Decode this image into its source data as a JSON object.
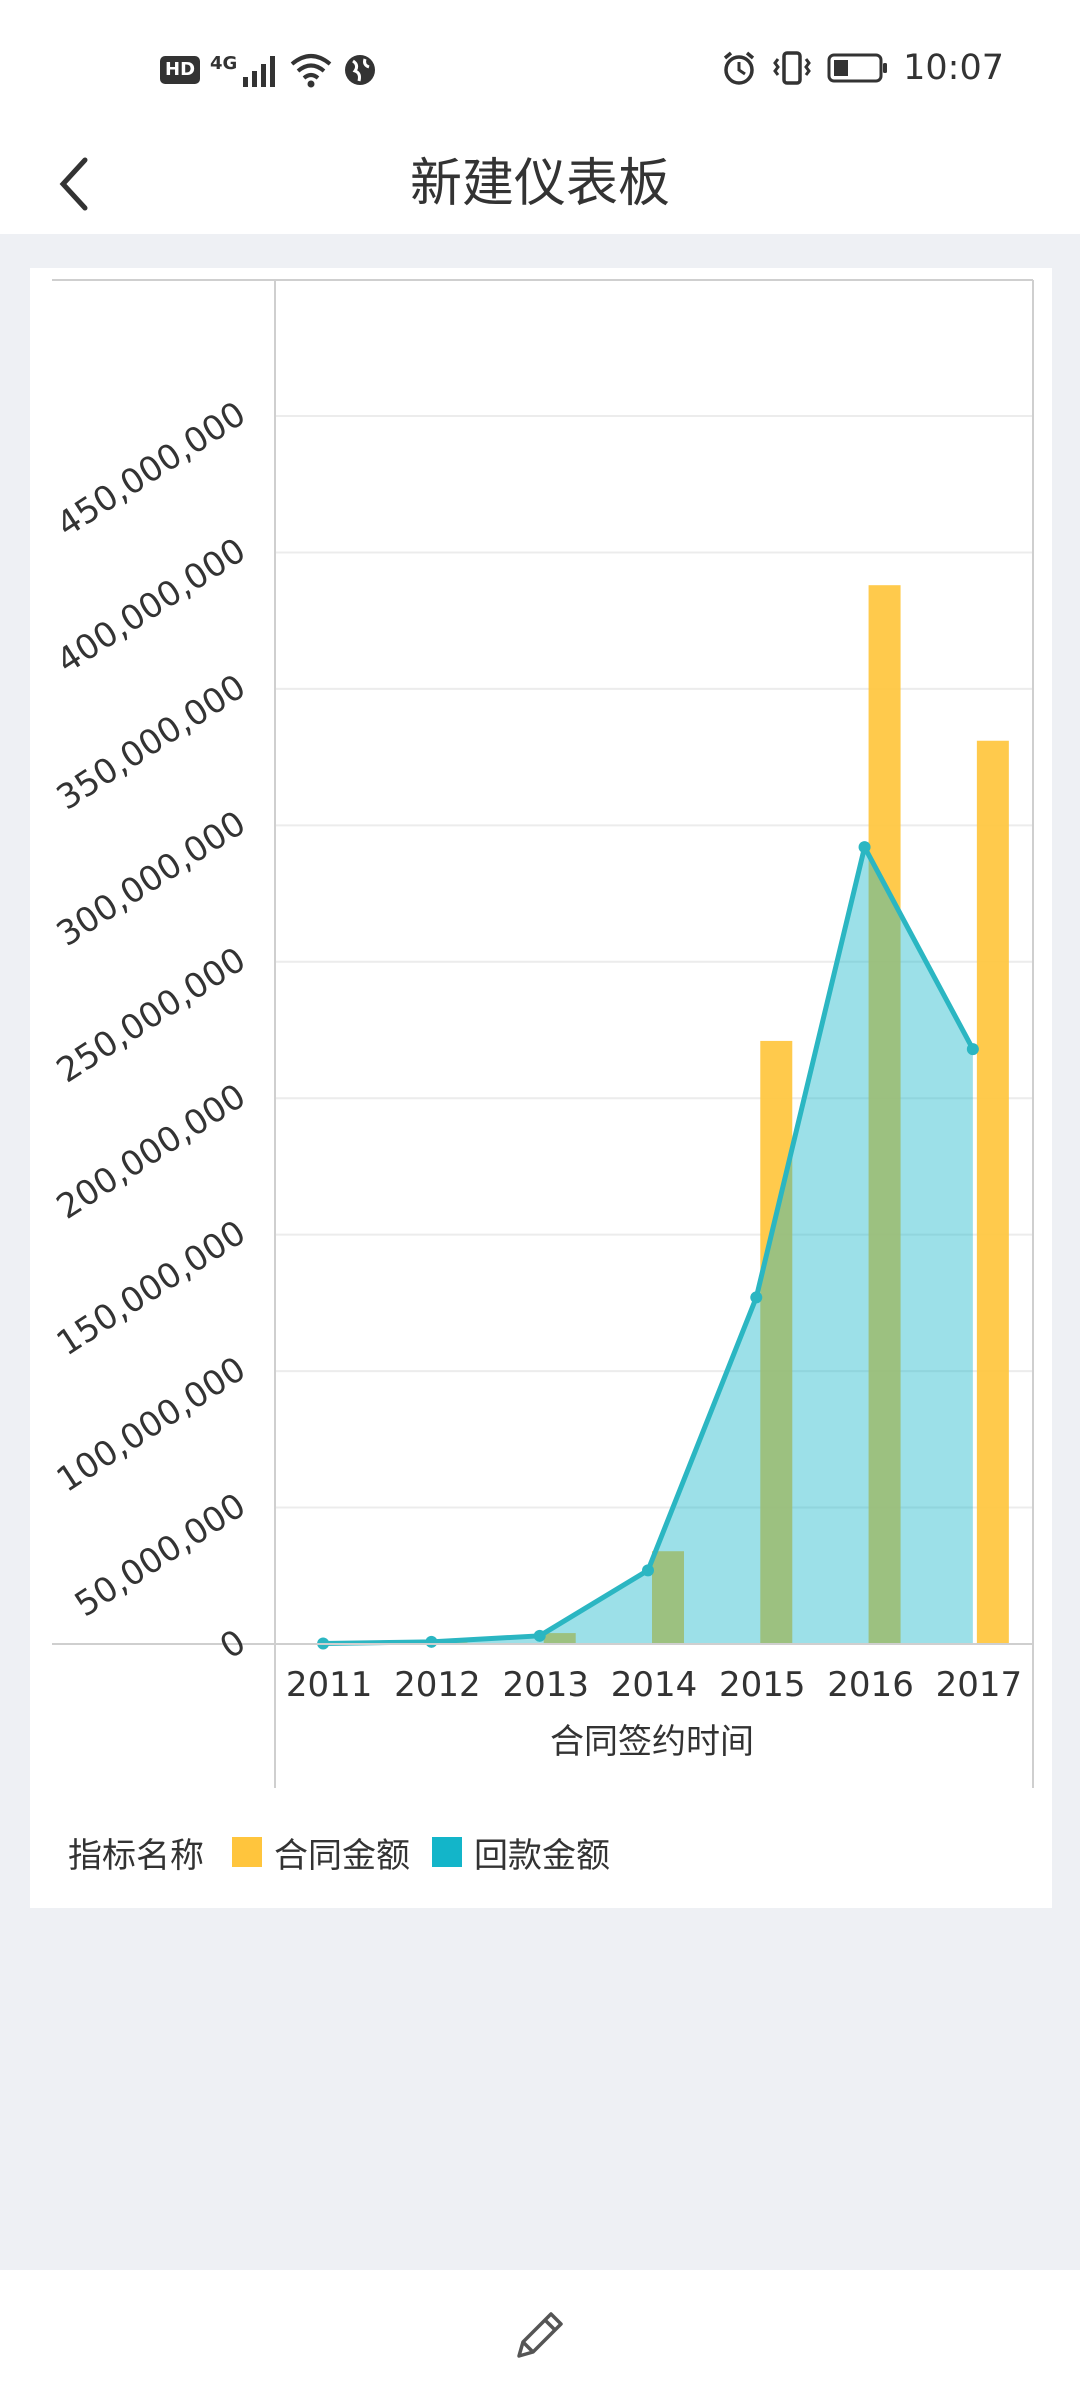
{
  "status_bar": {
    "network_badge": "HD",
    "network_type": "4G",
    "time": "10:07",
    "icons": [
      "hd-icon",
      "signal-icon",
      "wifi-icon",
      "globe-icon",
      "alarm-icon",
      "vibrate-icon",
      "battery-icon"
    ]
  },
  "header": {
    "title": "新建仪表板",
    "back_icon": "chevron-left-icon"
  },
  "legend": {
    "title": "指标名称",
    "items": [
      {
        "label": "合同金额",
        "color": "#ffc53d"
      },
      {
        "label": "回款金额",
        "color": "#13b5c9"
      }
    ]
  },
  "chart_data": {
    "type": "bar",
    "title": "",
    "xlabel": "合同签约时间",
    "ylabel": "",
    "categories": [
      "2011",
      "2012",
      "2013",
      "2014",
      "2015",
      "2016",
      "2017"
    ],
    "ylim": [
      0,
      450000000
    ],
    "y_ticks": [
      0,
      50000000,
      100000000,
      150000000,
      200000000,
      250000000,
      300000000,
      350000000,
      400000000,
      450000000
    ],
    "y_tick_labels": [
      "0",
      "50,000,000",
      "100,000,000",
      "150,000,000",
      "200,000,000",
      "250,000,000",
      "300,000,000",
      "350,000,000",
      "400,000,000",
      "450,000,000"
    ],
    "series": [
      {
        "name": "合同金额",
        "type": "bar",
        "color": "#ffc53d",
        "values": [
          200000,
          500000,
          4000000,
          34000000,
          221000000,
          388000000,
          331000000
        ]
      },
      {
        "name": "回款金额",
        "type": "area-line",
        "color": "#13b5c9",
        "values": [
          200000,
          800000,
          3000000,
          27000000,
          127000000,
          292000000,
          218000000
        ]
      }
    ],
    "legend": "bottom-left",
    "grid": true
  },
  "bottom_bar": {
    "edit_icon": "pencil-icon"
  }
}
